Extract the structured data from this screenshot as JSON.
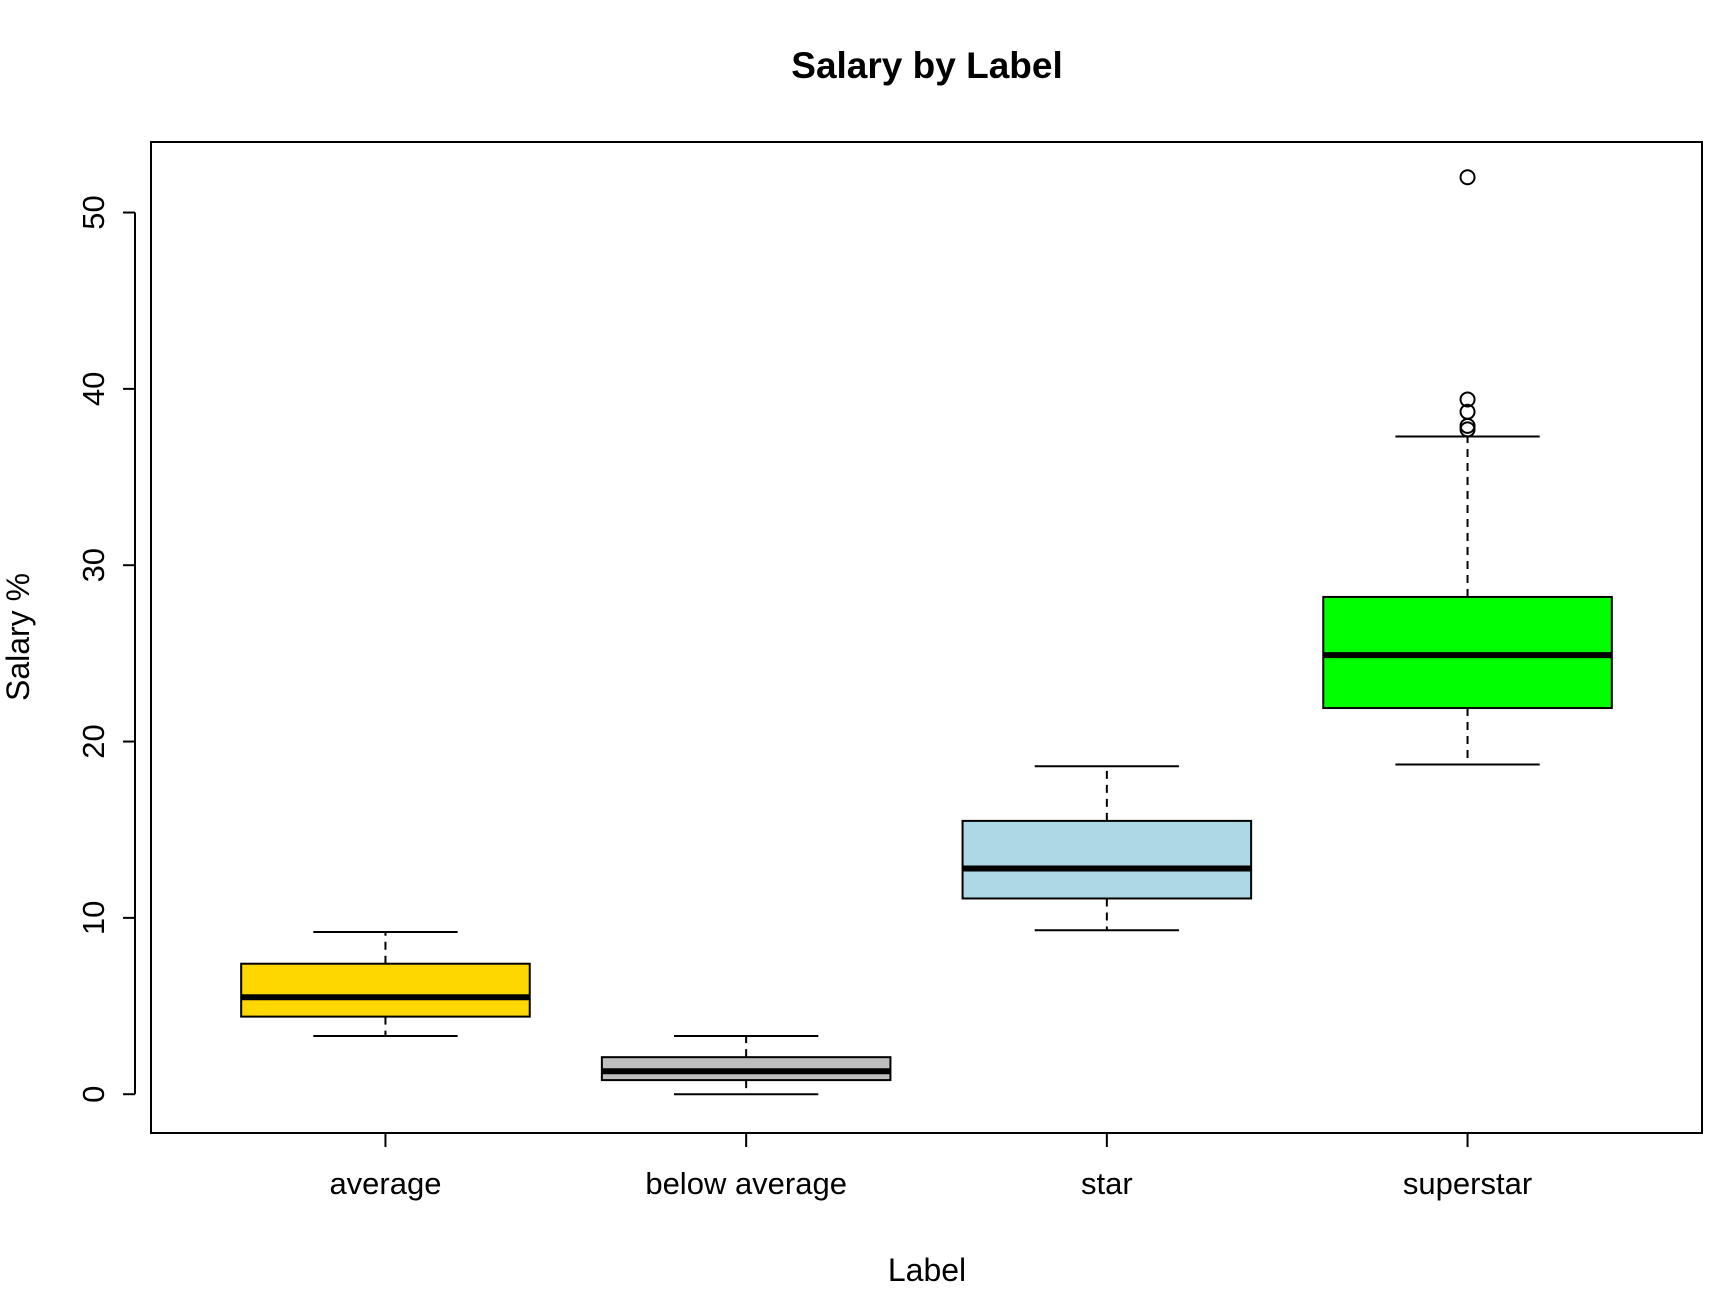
{
  "chart_data": {
    "type": "boxplot",
    "title": "Salary by Label",
    "xlabel": "Label",
    "ylabel": "Salary %",
    "ylim": [
      -2.2,
      54
    ],
    "y_ticks": [
      0,
      10,
      20,
      30,
      40,
      50
    ],
    "grid": false,
    "categories": [
      "average",
      "below average",
      "star",
      "superstar"
    ],
    "boxes": [
      {
        "name": "average",
        "color": "#FFD700",
        "whisker_low": 3.3,
        "q1": 4.4,
        "median": 5.5,
        "q3": 7.4,
        "whisker_high": 9.2,
        "outliers": []
      },
      {
        "name": "below average",
        "color": "#BEBEBE",
        "whisker_low": 0.0,
        "q1": 0.8,
        "median": 1.3,
        "q3": 2.1,
        "whisker_high": 3.3,
        "outliers": []
      },
      {
        "name": "star",
        "color": "#ADD8E6",
        "whisker_low": 9.3,
        "q1": 11.1,
        "median": 12.8,
        "q3": 15.5,
        "whisker_high": 18.6,
        "outliers": []
      },
      {
        "name": "superstar",
        "color": "#00FF00",
        "whisker_low": 18.7,
        "q1": 21.9,
        "median": 24.9,
        "q3": 28.2,
        "whisker_high": 37.3,
        "outliers": [
          37.7,
          37.9,
          38.7,
          39.4,
          52.0
        ]
      }
    ]
  }
}
